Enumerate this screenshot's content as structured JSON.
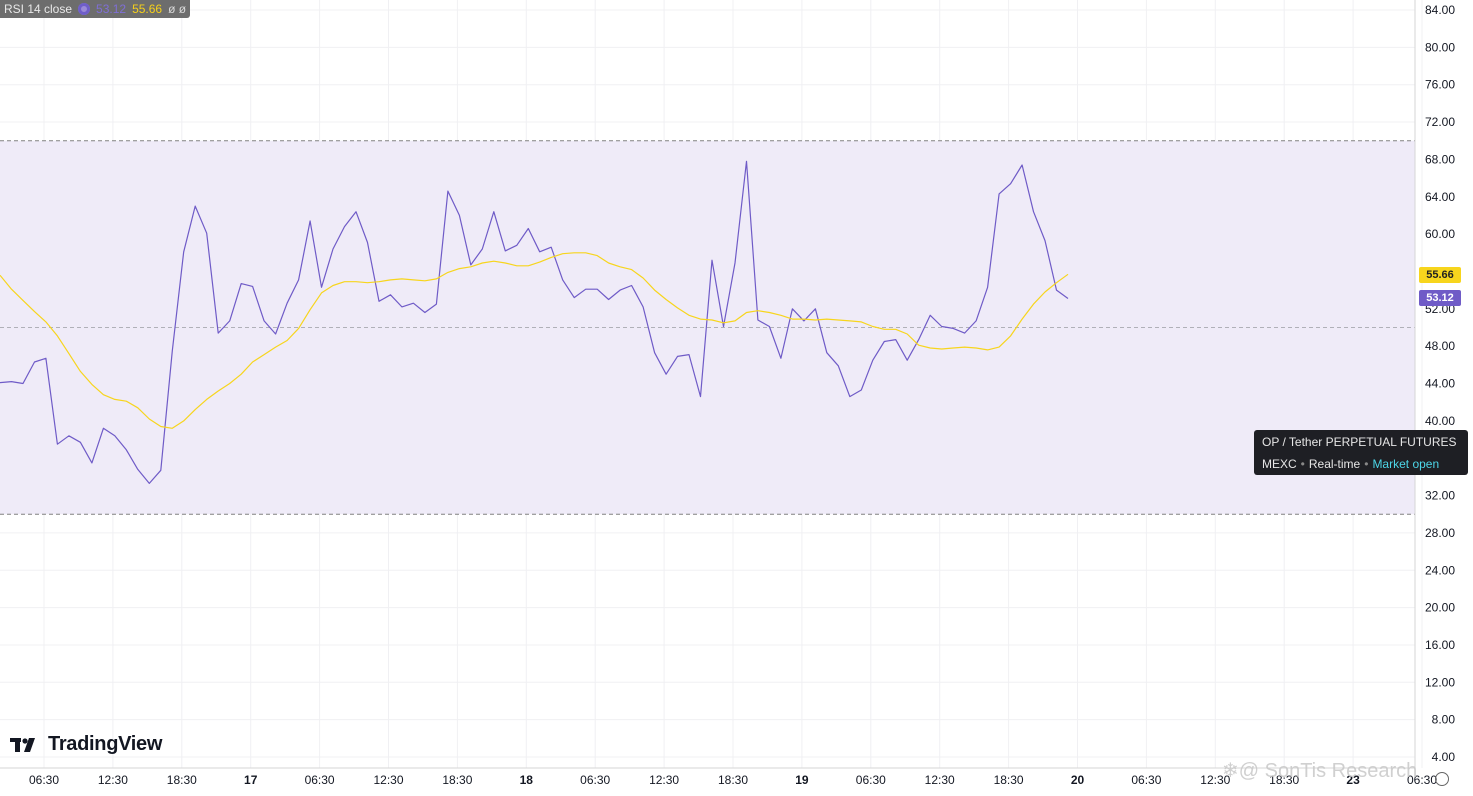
{
  "legend": {
    "indicator_label": "RSI 14 close",
    "rsi_value": "53.12",
    "ma_value": "55.66",
    "extra": "ø ø"
  },
  "price_tags": {
    "ma": "55.66",
    "rsi": "53.12"
  },
  "info_box": {
    "symbol": "OP / Tether PERPETUAL FUTURES",
    "exchange": "MEXC",
    "feed": "Real-time",
    "status": "Market open"
  },
  "logo": {
    "text": "TradingView",
    "icon": "tradingview-logo-icon"
  },
  "watermark": "❄@ SonTis Research",
  "colors": {
    "rsi_line": "#6f5bc7",
    "ma_line": "#f7d51d",
    "band_fill": "#efebf8",
    "band_line": "#808080",
    "grid": "#f0f0f3"
  },
  "chart_data": {
    "type": "line",
    "title": "",
    "xlabel": "",
    "ylabel": "",
    "ylim": [
      4,
      84
    ],
    "y_ticks": [
      "84.00",
      "80.00",
      "76.00",
      "72.00",
      "68.00",
      "64.00",
      "60.00",
      "56.00",
      "52.00",
      "48.00",
      "44.00",
      "40.00",
      "32.00",
      "28.00",
      "24.00",
      "20.00",
      "16.00",
      "12.00",
      "8.00",
      "4.00"
    ],
    "x_ticks": [
      {
        "label": "06:30",
        "bold": false
      },
      {
        "label": "12:30",
        "bold": false
      },
      {
        "label": "18:30",
        "bold": false
      },
      {
        "label": "17",
        "bold": true
      },
      {
        "label": "06:30",
        "bold": false
      },
      {
        "label": "12:30",
        "bold": false
      },
      {
        "label": "18:30",
        "bold": false
      },
      {
        "label": "18",
        "bold": true
      },
      {
        "label": "06:30",
        "bold": false
      },
      {
        "label": "12:30",
        "bold": false
      },
      {
        "label": "18:30",
        "bold": false
      },
      {
        "label": "19",
        "bold": true
      },
      {
        "label": "06:30",
        "bold": false
      },
      {
        "label": "12:30",
        "bold": false
      },
      {
        "label": "18:30",
        "bold": false
      },
      {
        "label": "20",
        "bold": true
      },
      {
        "label": "06:30",
        "bold": false
      },
      {
        "label": "12:30",
        "bold": false
      },
      {
        "label": "18:30",
        "bold": false
      },
      {
        "label": "23",
        "bold": true
      },
      {
        "label": "06:30",
        "bold": false
      }
    ],
    "bands": {
      "upper": 70,
      "middle": 50,
      "lower": 30
    },
    "series": [
      {
        "name": "RSI",
        "color": "#6f5bc7",
        "values": [
          44.1,
          44.2,
          44.0,
          46.3,
          46.7,
          37.5,
          38.4,
          37.7,
          35.5,
          39.2,
          38.4,
          36.9,
          34.8,
          33.3,
          34.7,
          47.5,
          58.1,
          63.0,
          60.1,
          49.4,
          50.7,
          54.7,
          54.4,
          50.7,
          49.3,
          52.6,
          55.1,
          61.4,
          54.3,
          58.4,
          60.8,
          62.4,
          59.1,
          52.8,
          53.5,
          52.2,
          52.6,
          51.6,
          52.5,
          64.6,
          62.0,
          56.7,
          58.4,
          62.4,
          58.2,
          58.8,
          60.6,
          58.1,
          58.6,
          55.1,
          53.2,
          54.1,
          54.1,
          53.0,
          54.0,
          54.5,
          52.2,
          47.3,
          45.0,
          46.9,
          47.1,
          42.6,
          57.2,
          50.1,
          56.9,
          67.8,
          50.8,
          50.1,
          46.7,
          52.0,
          50.7,
          52.0,
          47.3,
          45.9,
          42.6,
          43.3,
          46.5,
          48.5,
          48.7,
          46.5,
          48.7,
          51.3,
          50.1,
          49.9,
          49.4,
          50.7,
          54.3,
          64.3,
          65.4,
          67.4,
          62.4,
          59.3,
          54.0,
          53.1
        ]
      },
      {
        "name": "RSI-based MA",
        "color": "#f7d51d",
        "values": [
          55.6,
          54.1,
          52.9,
          51.7,
          50.6,
          49.1,
          47.2,
          45.3,
          43.9,
          42.8,
          42.3,
          42.1,
          41.4,
          40.2,
          39.4,
          39.2,
          40.0,
          41.2,
          42.3,
          43.2,
          44.0,
          45.0,
          46.3,
          47.1,
          47.9,
          48.6,
          49.9,
          51.9,
          53.7,
          54.5,
          54.9,
          54.9,
          54.8,
          54.9,
          55.1,
          55.2,
          55.1,
          55.0,
          55.2,
          55.9,
          56.3,
          56.5,
          56.9,
          57.1,
          56.9,
          56.6,
          56.6,
          57.0,
          57.5,
          57.9,
          58.0,
          58.0,
          57.7,
          56.9,
          56.5,
          56.2,
          55.3,
          54.0,
          53.0,
          52.1,
          51.3,
          50.9,
          50.8,
          50.5,
          50.7,
          51.6,
          51.8,
          51.6,
          51.3,
          50.9,
          50.9,
          50.8,
          50.9,
          50.8,
          50.7,
          50.6,
          50.1,
          49.8,
          49.8,
          49.3,
          48.1,
          47.8,
          47.7,
          47.8,
          47.9,
          47.8,
          47.6,
          47.9,
          49.1,
          50.9,
          52.5,
          53.8,
          54.8,
          55.7
        ]
      }
    ]
  }
}
